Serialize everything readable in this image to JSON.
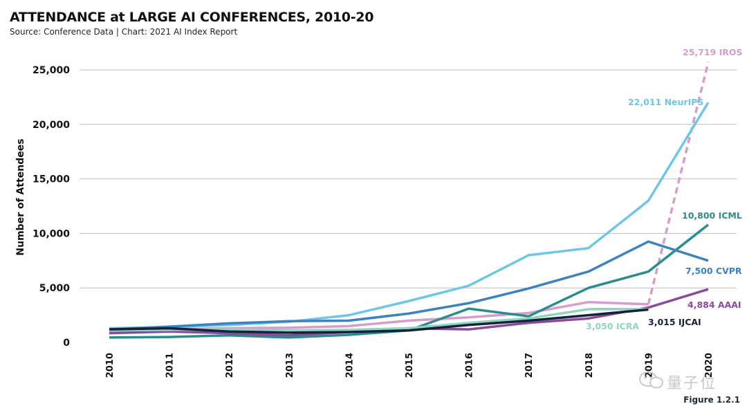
{
  "header": {
    "title": "ATTENDANCE at LARGE AI CONFERENCES, 2010-20",
    "subtitle": "Source: Conference Data | Chart: 2021 AI Index Report"
  },
  "footer": {
    "figure_label": "Figure 1.2.1",
    "watermark_text": "量子位"
  },
  "chart_data": {
    "type": "line",
    "title": "ATTENDANCE at LARGE AI CONFERENCES, 2010-20",
    "xlabel": "",
    "ylabel": "Number of Attendees",
    "x": [
      "2010",
      "2011",
      "2012",
      "2013",
      "2014",
      "2015",
      "2016",
      "2017",
      "2018",
      "2019",
      "2020"
    ],
    "ylim": [
      0,
      26500
    ],
    "yticks": [
      0,
      5000,
      10000,
      15000,
      20000,
      25000
    ],
    "ytick_labels": [
      "0",
      "5,000",
      "10,000",
      "15,000",
      "20,000",
      "25,000"
    ],
    "grid": true,
    "series": [
      {
        "name": "IROS",
        "color": "#d59ccc",
        "dashed_last_segment": true,
        "values": [
          1000,
          1200,
          1300,
          1350,
          1500,
          2000,
          2300,
          2700,
          3700,
          3500,
          25719
        ],
        "end_label": "25,719 IROS"
      },
      {
        "name": "NeurIPS",
        "color": "#6ec6e6",
        "values": [
          1300,
          1400,
          1600,
          1900,
          2500,
          3800,
          5200,
          8000,
          8650,
          13000,
          22011
        ],
        "end_label": "22,011 NeurIPS"
      },
      {
        "name": "ICML",
        "color": "#2a8c8c",
        "values": [
          450,
          500,
          650,
          450,
          700,
          1100,
          3100,
          2400,
          5000,
          6500,
          10800
        ],
        "end_label": "10,800 ICML"
      },
      {
        "name": "CVPR",
        "color": "#3a82c0",
        "values": [
          1200,
          1450,
          1750,
          1950,
          2000,
          2650,
          3600,
          4950,
          6500,
          9250,
          7500
        ],
        "end_label": "7,500 CVPR"
      },
      {
        "name": "AAAI",
        "color": "#8a4a9c",
        "values": [
          850,
          1000,
          850,
          650,
          950,
          1300,
          1200,
          1800,
          2200,
          3200,
          4884
        ],
        "end_label": "4,884 AAAI"
      },
      {
        "name": "ICRA",
        "color": "#8fd3c2",
        "values": [
          1100,
          1150,
          1200,
          1100,
          1150,
          1300,
          1800,
          2200,
          3050,
          3050,
          null
        ],
        "end_label": "3,050 ICRA"
      },
      {
        "name": "IJCAI",
        "color": "#142238",
        "values": [
          1200,
          1300,
          1000,
          900,
          950,
          1100,
          1600,
          2000,
          2500,
          3015,
          null
        ],
        "end_label": "3,015 IJCAI"
      }
    ]
  }
}
